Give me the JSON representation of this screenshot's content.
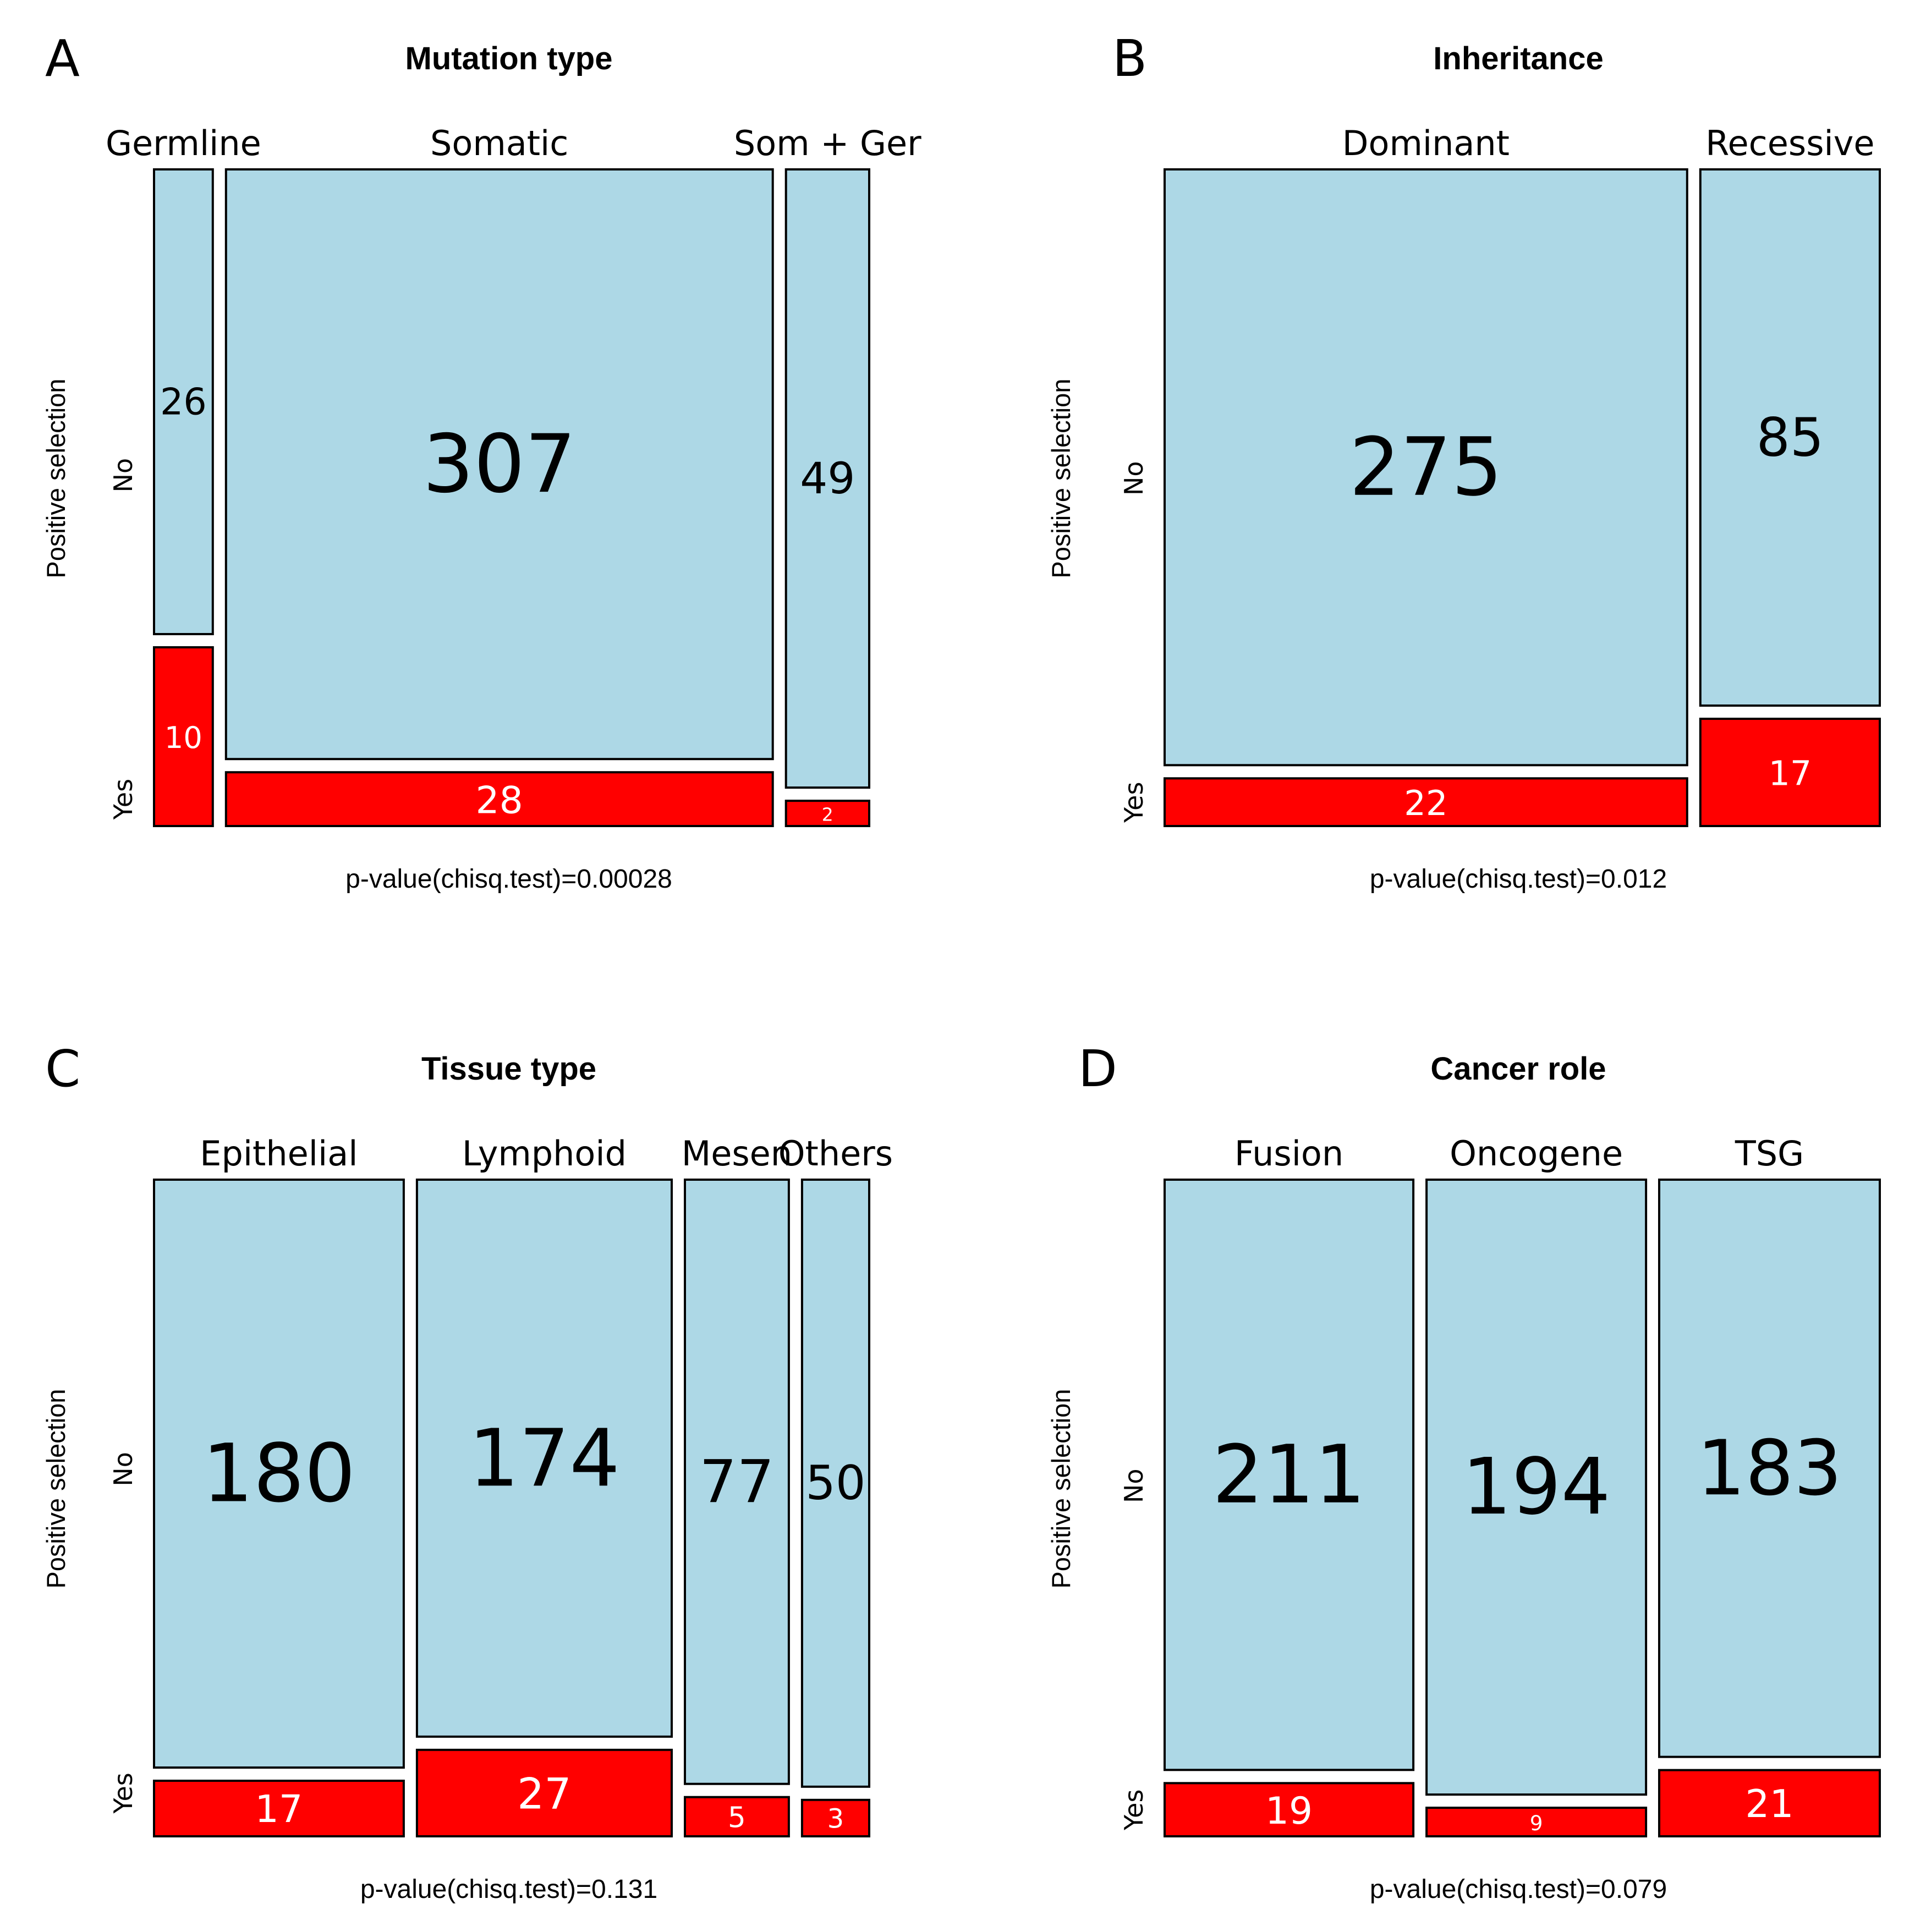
{
  "chart_data": [
    {
      "type": "mosaic",
      "panel": "A",
      "title": "Mutation type",
      "ylabel": "Positive selection",
      "row_labels": [
        "No",
        "Yes"
      ],
      "categories": [
        "Germline",
        "Somatic",
        "Som + Ger"
      ],
      "series": [
        {
          "name": "No",
          "values": [
            26,
            307,
            49
          ]
        },
        {
          "name": "Yes",
          "values": [
            10,
            28,
            2
          ]
        }
      ],
      "footnote": "p-value(chisq.test)=0.00028",
      "colors": {
        "no": "#add8e6",
        "yes": "#ff0000"
      }
    },
    {
      "type": "mosaic",
      "panel": "B",
      "title": "Inheritance",
      "ylabel": "Positive selection",
      "row_labels": [
        "No",
        "Yes"
      ],
      "categories": [
        "Dominant",
        "Recessive"
      ],
      "series": [
        {
          "name": "No",
          "values": [
            275,
            85
          ]
        },
        {
          "name": "Yes",
          "values": [
            22,
            17
          ]
        }
      ],
      "footnote": "p-value(chisq.test)=0.012",
      "colors": {
        "no": "#add8e6",
        "yes": "#ff0000"
      }
    },
    {
      "type": "mosaic",
      "panel": "C",
      "title": "Tissue type",
      "ylabel": "Positive selection",
      "row_labels": [
        "No",
        "Yes"
      ],
      "categories": [
        "Epithelial",
        "Lymphoid",
        "Mesen",
        "Others"
      ],
      "series": [
        {
          "name": "No",
          "values": [
            180,
            174,
            77,
            50
          ]
        },
        {
          "name": "Yes",
          "values": [
            17,
            27,
            5,
            3
          ]
        }
      ],
      "footnote": "p-value(chisq.test)=0.131",
      "colors": {
        "no": "#add8e6",
        "yes": "#ff0000"
      }
    },
    {
      "type": "mosaic",
      "panel": "D",
      "title": "Cancer role",
      "ylabel": "Positive selection",
      "row_labels": [
        "No",
        "Yes"
      ],
      "categories": [
        "Fusion",
        "Oncogene",
        "TSG"
      ],
      "series": [
        {
          "name": "No",
          "values": [
            211,
            194,
            183
          ]
        },
        {
          "name": "Yes",
          "values": [
            19,
            9,
            21
          ]
        }
      ],
      "footnote": "p-value(chisq.test)=0.079",
      "colors": {
        "no": "#add8e6",
        "yes": "#ff0000"
      }
    }
  ]
}
